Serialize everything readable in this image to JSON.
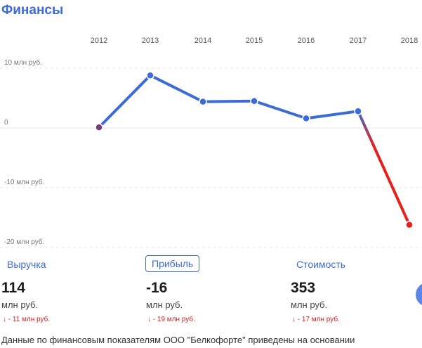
{
  "title": "Финансы",
  "chart_data": {
    "type": "line",
    "x": [
      "2012",
      "2013",
      "2014",
      "2015",
      "2016",
      "2017",
      "2018"
    ],
    "series": [
      {
        "values": [
          0.1,
          8.8,
          4.4,
          4.5,
          1.6,
          2.8,
          -16.2
        ]
      }
    ],
    "y_gridlines": [
      {
        "value": 10,
        "label": "10 млн руб."
      },
      {
        "value": 0,
        "label": "0"
      },
      {
        "value": -10,
        "label": "-10 млн руб."
      },
      {
        "value": -20,
        "label": "-20 млн руб."
      }
    ],
    "ylim": [
      -20,
      10
    ],
    "grid": true,
    "colors": {
      "positive": "#3d6bd6",
      "negative": "#e8201c",
      "first_point": "#7b3c7a"
    }
  },
  "metrics": [
    {
      "label": "Выручка",
      "value": "114",
      "unit": "млн руб.",
      "change": "↓ - 11 млн руб."
    },
    {
      "label": "Прибыль",
      "value": "-16",
      "unit": "млн руб.",
      "change": "↓ - 19 млн руб."
    },
    {
      "label": "Стоимость",
      "value": "353",
      "unit": "млн руб.",
      "change": "↓ - 17 млн руб."
    }
  ],
  "footer": "Данные по финансовым показателям ООО \"Белкофорте\" приведены на основании"
}
